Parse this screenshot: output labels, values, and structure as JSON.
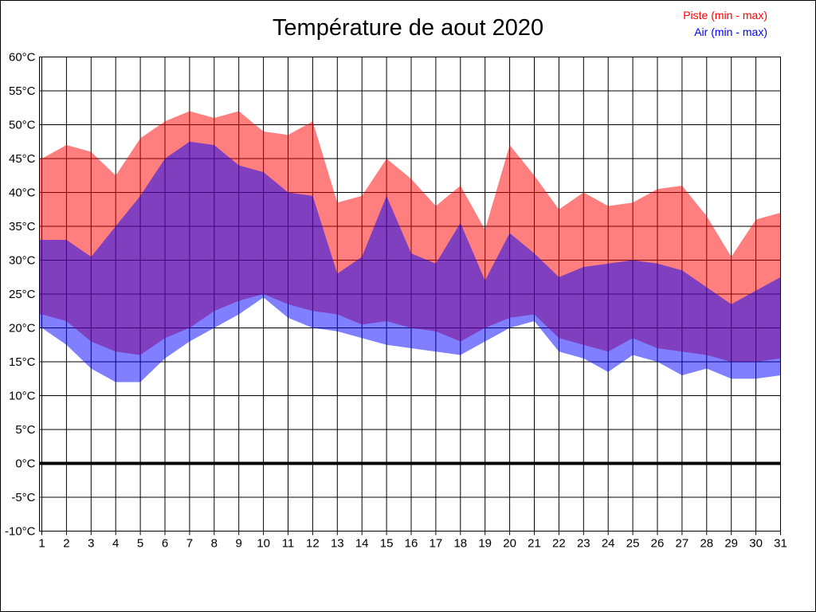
{
  "title": "Température de aout 2020",
  "chart_data": {
    "type": "area",
    "title": "Température de aout 2020",
    "xlabel": "",
    "ylabel": "",
    "x": [
      1,
      2,
      3,
      4,
      5,
      6,
      7,
      8,
      9,
      10,
      11,
      12,
      13,
      14,
      15,
      16,
      17,
      18,
      19,
      20,
      21,
      22,
      23,
      24,
      25,
      26,
      27,
      28,
      29,
      30,
      31
    ],
    "xtick_labels": [
      "1",
      "2",
      "3",
      "4",
      "5",
      "6",
      "7",
      "8",
      "9",
      "10",
      "11",
      "12",
      "13",
      "14",
      "15",
      "16",
      "17",
      "18",
      "19",
      "20",
      "21",
      "22",
      "23",
      "24",
      "25",
      "26",
      "27",
      "28",
      "29",
      "30",
      "31"
    ],
    "ylim": [
      -10,
      60
    ],
    "ytick_step": 5,
    "ytick_labels": [
      "60°C",
      "55°C",
      "50°C",
      "45°C",
      "40°C",
      "35°C",
      "30°C",
      "25°C",
      "20°C",
      "15°C",
      "10°C",
      "5°C",
      "0°C",
      "-5°C",
      "-10°C"
    ],
    "grid": true,
    "legend_position": "top-right",
    "zero_line": {
      "value": 0,
      "color": "#000000",
      "width": 4
    },
    "bands": [
      {
        "name": "Piste (min - max)",
        "color": "#FF0000",
        "fill_opacity": 0.5,
        "max": [
          45,
          47,
          46,
          42.5,
          48,
          50.5,
          52,
          51,
          52,
          49,
          48.5,
          50.5,
          38.5,
          39.5,
          45,
          42,
          38,
          41,
          34.5,
          47,
          42.5,
          37.5,
          40,
          38,
          38.5,
          40.5,
          41,
          36.5,
          30.5,
          36,
          37
        ],
        "min": [
          22,
          21,
          18,
          16.5,
          16,
          18.5,
          20,
          22.5,
          24,
          25,
          23.5,
          22.5,
          22,
          20.5,
          21,
          20,
          19.5,
          18,
          20,
          21.5,
          22,
          18.5,
          17.5,
          16.5,
          18.5,
          17,
          16.5,
          16,
          15,
          15,
          15.5
        ]
      },
      {
        "name": "Air (min - max)",
        "color": "#0000FF",
        "fill_opacity": 0.5,
        "max": [
          33,
          33,
          30.5,
          35,
          39.5,
          45,
          47.5,
          47,
          44,
          43,
          40,
          39.5,
          28,
          30.5,
          39.5,
          31,
          29.5,
          35.5,
          27,
          34,
          31,
          27.5,
          29,
          29.5,
          30,
          29.5,
          28.5,
          26,
          23.5,
          25.5,
          27.5
        ],
        "min": [
          20,
          17.5,
          14,
          12,
          12,
          15.5,
          18,
          20,
          22,
          24.5,
          21.5,
          20,
          19.5,
          18.5,
          17.5,
          17,
          16.5,
          16,
          18,
          20,
          21,
          16.5,
          15.5,
          13.5,
          16,
          15,
          13,
          14,
          12.5,
          12.5,
          13
        ]
      }
    ]
  }
}
